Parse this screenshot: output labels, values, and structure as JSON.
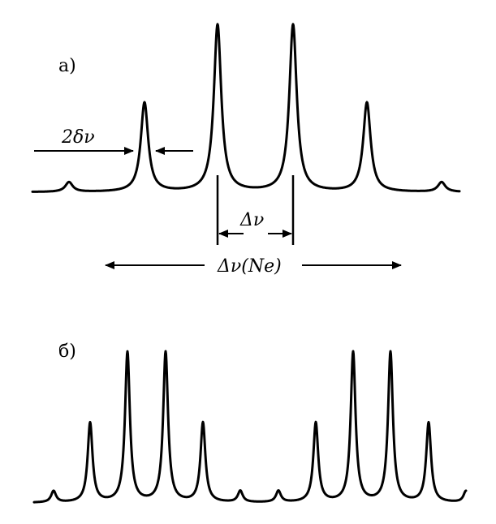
{
  "panel_a": {
    "label": "а)",
    "linewidth_label": "2δν",
    "spacing_label": "Δν",
    "neon_label": "Δν(Ne)"
  },
  "panel_b": {
    "label": "б)"
  }
}
